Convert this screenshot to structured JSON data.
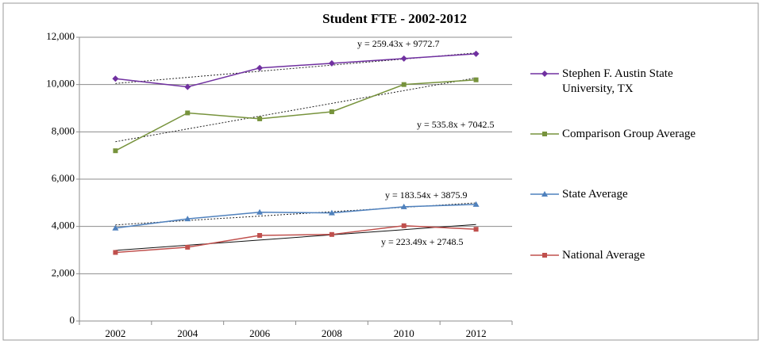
{
  "chart_data": {
    "type": "line",
    "title": "Student FTE - 2002-2012",
    "categories": [
      "2002",
      "2004",
      "2006",
      "2008",
      "2010",
      "2012"
    ],
    "series": [
      {
        "name": "Stephen F. Austin State University, TX",
        "color": "#7030a0",
        "marker": "diamond",
        "values": [
          10250,
          9900,
          10700,
          10900,
          11100,
          11300
        ]
      },
      {
        "name": "Comparison Group Average",
        "color": "#77933c",
        "marker": "square",
        "values": [
          7200,
          8800,
          8550,
          8850,
          10000,
          10200
        ]
      },
      {
        "name": "State Average",
        "color": "#4f81bd",
        "marker": "triangle",
        "values": [
          3930,
          4320,
          4600,
          4570,
          4830,
          4930
        ]
      },
      {
        "name": "National Average",
        "color": "#c0504d",
        "marker": "square",
        "values": [
          2900,
          3120,
          3620,
          3660,
          4030,
          3880
        ]
      }
    ],
    "annotations": [
      "y = 259.43x + 9772.7",
      "y = 535.8x + 7042.5",
      "y = 183.54x + 3875.9",
      "y = 223.49x + 2748.5"
    ],
    "ylim": [
      0,
      12000
    ],
    "yticks": [
      0,
      {
        "value": 2000,
        "label": "2,000"
      },
      {
        "value": 4000,
        "label": "4,000"
      },
      {
        "value": 6000,
        "label": "6,000"
      },
      {
        "value": 8000,
        "label": "8,000"
      },
      {
        "value": 10000,
        "label": "10,000"
      },
      {
        "value": 12000,
        "label": "12,000"
      }
    ],
    "grid": true,
    "legend": "right"
  }
}
